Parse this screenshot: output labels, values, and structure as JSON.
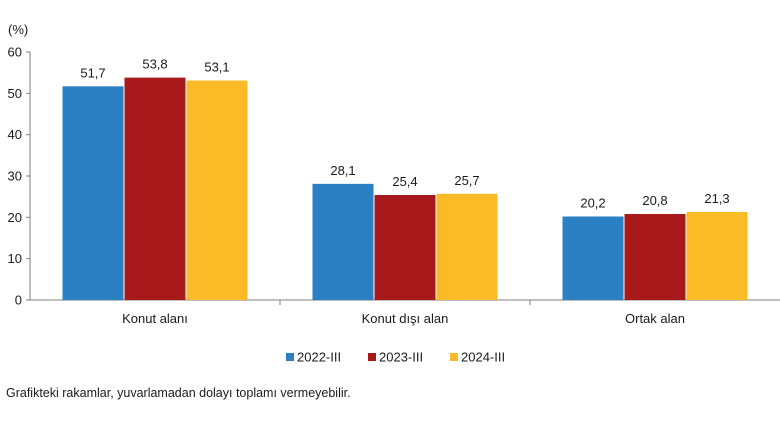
{
  "chart_data": {
    "type": "bar",
    "unit_label": "(%)",
    "categories": [
      "Konut alanı",
      "Konut dışı alan",
      "Ortak alan"
    ],
    "series": [
      {
        "name": "2022-III",
        "color": "#2b7fc3",
        "values": [
          51.7,
          28.1,
          20.2
        ],
        "labels": [
          "51,7",
          "28,1",
          "20,2"
        ]
      },
      {
        "name": "2023-III",
        "color": "#a8191c",
        "values": [
          53.8,
          25.4,
          20.8
        ],
        "labels": [
          "53,8",
          "25,4",
          "20,8"
        ]
      },
      {
        "name": "2024-III",
        "color": "#fbbb27",
        "values": [
          53.1,
          25.7,
          21.3
        ],
        "labels": [
          "53,1",
          "25,7",
          "21,3"
        ]
      }
    ],
    "ylim": [
      0,
      60
    ],
    "yticks": [
      0,
      10,
      20,
      30,
      40,
      50,
      60
    ],
    "grid": false,
    "legend_position": "bottom"
  },
  "footnote": "Grafikteki rakamlar, yuvarlamadan dolayı toplamı vermeyebilir."
}
